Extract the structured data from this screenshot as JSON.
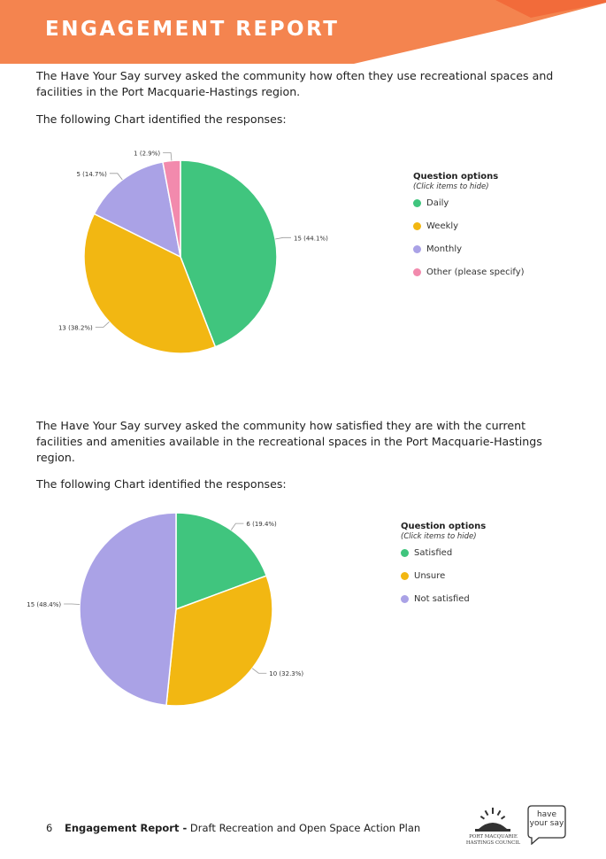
{
  "header": {
    "title": "ENGAGEMENT REPORT",
    "band_color": "#F4844F",
    "accent_color": "#F26B3A"
  },
  "section1": {
    "intro": "The Have Your Say survey asked the community how often they use recreational spaces and facilities in the Port Macquarie-Hastings region.",
    "lead": "The following Chart identified the responses:"
  },
  "section2": {
    "intro": "The Have Your Say survey asked the community how satisfied they are with the current facilities and amenities available in the recreational spaces in the Port Macquarie-Hastings region.",
    "lead": "The following Chart identified the responses:"
  },
  "chart_data": [
    {
      "type": "pie",
      "legend_title": "Question options",
      "legend_subtitle": "(Click items to hide)",
      "legend_position": "right",
      "categories": [
        "Daily",
        "Weekly",
        "Monthly",
        "Other (please specify)"
      ],
      "values": [
        15,
        13,
        5,
        1
      ],
      "percentages": [
        44.1,
        38.2,
        14.7,
        2.9
      ],
      "data_labels": [
        "15 (44.1%)",
        "13 (38.2%)",
        "5 (14.7%)",
        "1 (2.9%)"
      ],
      "colors": [
        "#40C57E",
        "#F2B712",
        "#AAA2E6",
        "#F28AAD"
      ]
    },
    {
      "type": "pie",
      "legend_title": "Question options",
      "legend_subtitle": "(Click items to hide)",
      "legend_position": "right",
      "categories": [
        "Satisfied",
        "Unsure",
        "Not satisfied"
      ],
      "values": [
        6,
        10,
        15
      ],
      "percentages": [
        19.4,
        32.3,
        48.4
      ],
      "data_labels": [
        "6 (19.4%)",
        "10 (32.3%)",
        "15 (48.4%)"
      ],
      "colors": [
        "#40C57E",
        "#F2B712",
        "#AAA2E6"
      ]
    }
  ],
  "footer": {
    "page_number": "6",
    "report_bold": "Engagement Report -",
    "report_title": "Draft Recreation and Open Space Action Plan",
    "council_logo_text": "PORT MACQUARIE HASTINGS COUNCIL",
    "hys_logo_text": "have your say"
  }
}
